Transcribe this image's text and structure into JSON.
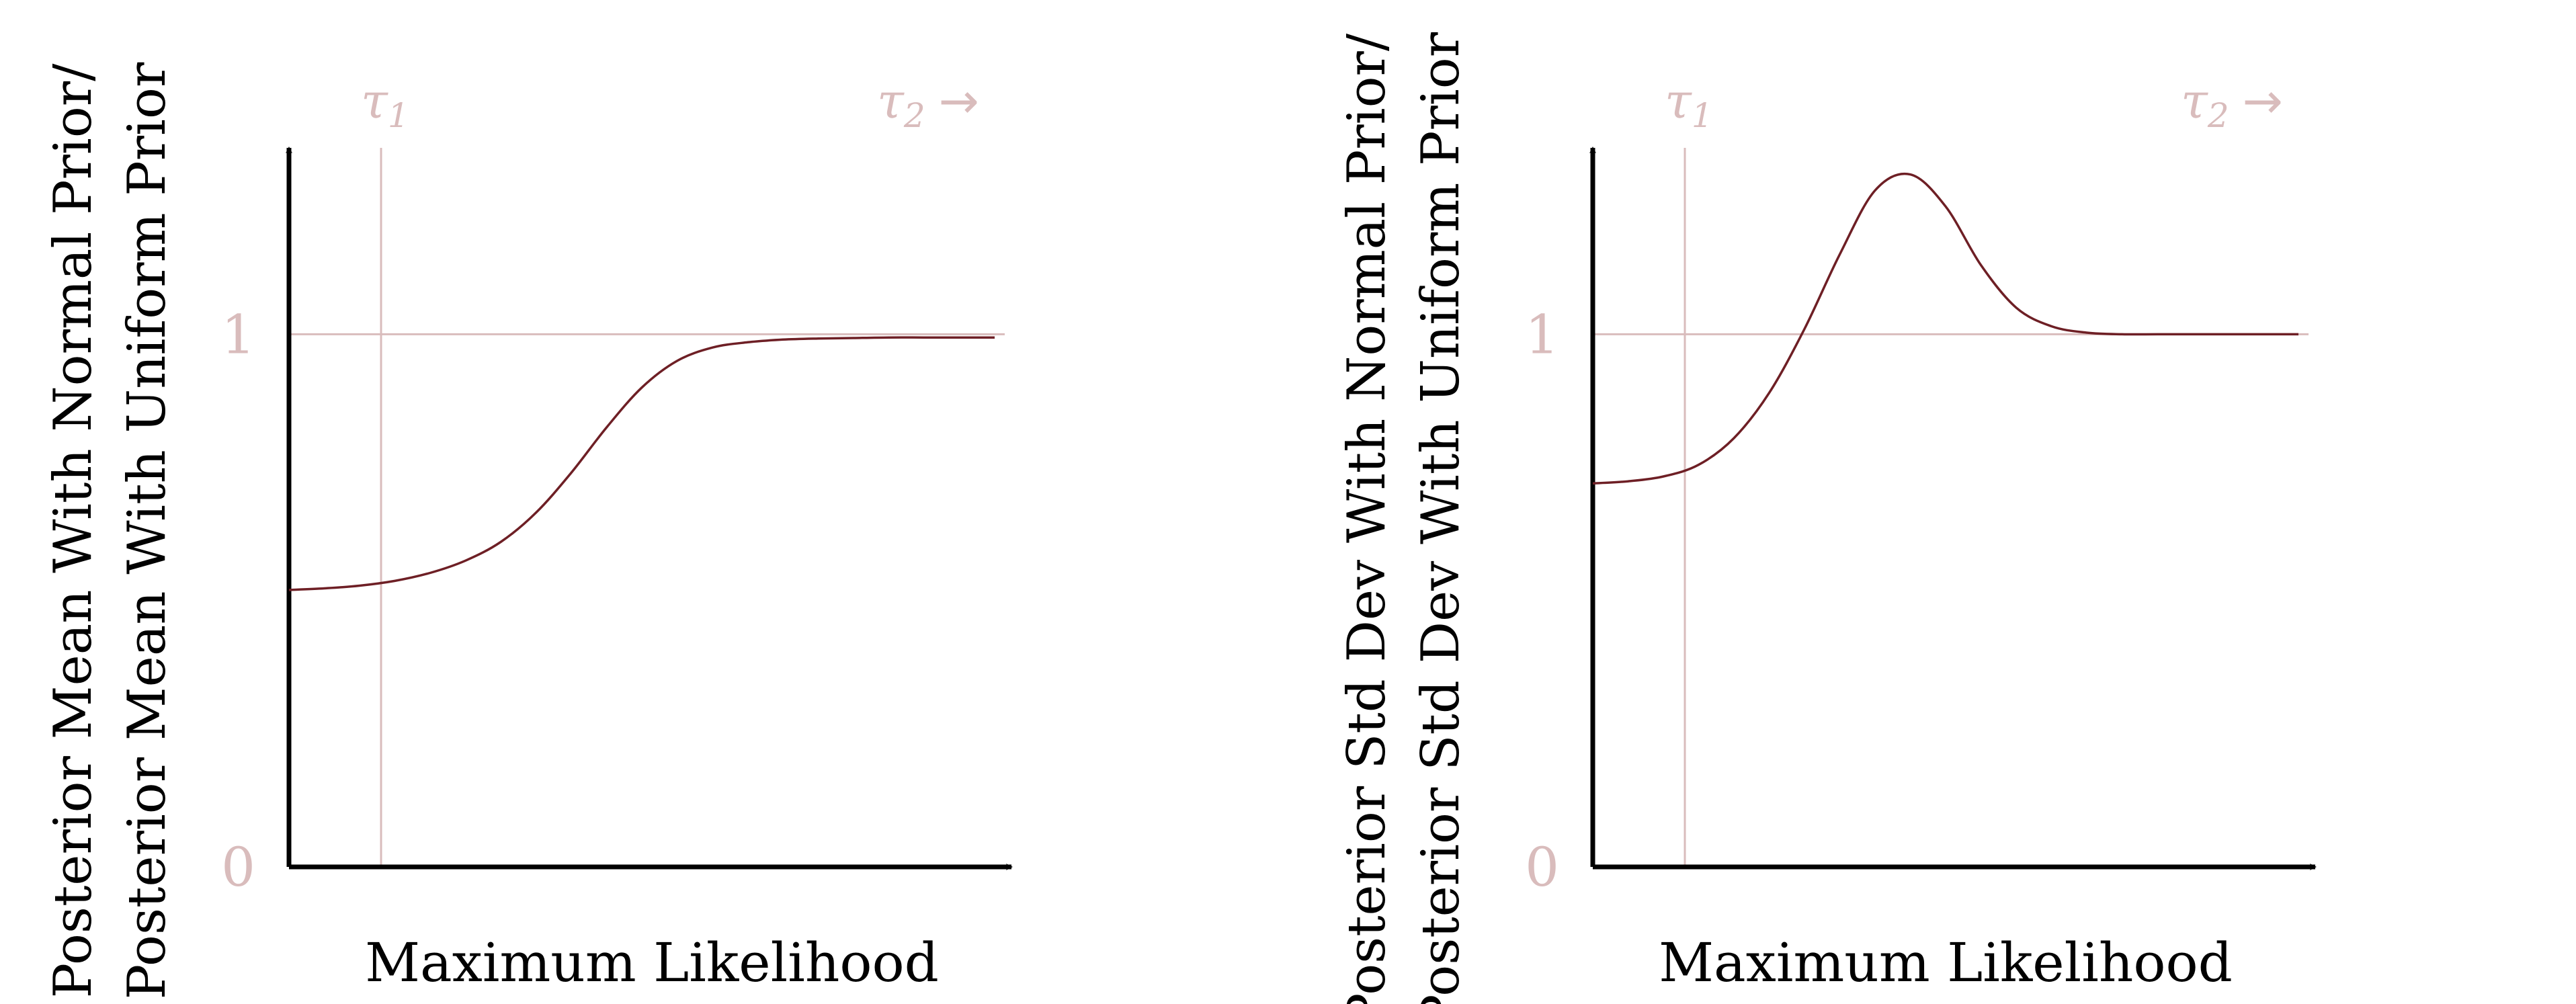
{
  "colors": {
    "axis": "#000000",
    "curve": "#6e1f25",
    "guide": "#d9bcbc"
  },
  "chart_data": [
    {
      "type": "line",
      "panel": "left",
      "xlabel": "Maximum Likelihood",
      "ylabel_line1": "Posterior Mean With Normal Prior/",
      "ylabel_line2": "Posterior Mean With Uniform Prior",
      "yticks": [
        {
          "value": 0,
          "label": "0"
        },
        {
          "value": 1,
          "label": "1"
        }
      ],
      "ylim": [
        0,
        1.35
      ],
      "xlim": [
        0,
        1
      ],
      "markers": [
        {
          "symbol": "τ",
          "sub": "1",
          "arrow": ""
        },
        {
          "symbol": "τ",
          "sub": "2",
          "arrow": "→"
        }
      ],
      "series": [
        {
          "x": [
            0,
            0.05,
            0.1,
            0.15,
            0.2,
            0.25,
            0.3,
            0.35,
            0.4,
            0.45,
            0.5,
            0.55,
            0.6,
            0.65,
            0.7,
            0.75,
            0.8,
            0.85,
            0.9,
            0.95,
            1.0
          ],
          "y": [
            0.52,
            0.523,
            0.528,
            0.537,
            0.552,
            0.575,
            0.61,
            0.665,
            0.74,
            0.825,
            0.9,
            0.95,
            0.975,
            0.985,
            0.99,
            0.992,
            0.993,
            0.994,
            0.994,
            0.994,
            0.994
          ]
        }
      ],
      "grid": false
    },
    {
      "type": "line",
      "panel": "right",
      "xlabel": "Maximum Likelihood",
      "ylabel_line1": "Posterior Std Dev With Normal Prior/",
      "ylabel_line2": "Posterior Std Dev With Uniform Prior",
      "yticks": [
        {
          "value": 0,
          "label": "0"
        },
        {
          "value": 1,
          "label": "1"
        }
      ],
      "ylim": [
        0,
        1.35
      ],
      "xlim": [
        0,
        1
      ],
      "markers": [
        {
          "symbol": "τ",
          "sub": "1",
          "arrow": ""
        },
        {
          "symbol": "τ",
          "sub": "2",
          "arrow": "→"
        }
      ],
      "series": [
        {
          "x": [
            0,
            0.05,
            0.1,
            0.15,
            0.2,
            0.25,
            0.3,
            0.35,
            0.4,
            0.45,
            0.5,
            0.55,
            0.6,
            0.65,
            0.7,
            0.75,
            0.8,
            0.85,
            0.9,
            0.95,
            1.0
          ],
          "y": [
            0.72,
            0.724,
            0.733,
            0.755,
            0.805,
            0.89,
            1.01,
            1.15,
            1.27,
            1.3,
            1.24,
            1.13,
            1.05,
            1.015,
            1.003,
            1.0,
            1.0,
            1.0,
            1.0,
            1.0,
            1.0
          ]
        }
      ],
      "grid": false
    }
  ]
}
